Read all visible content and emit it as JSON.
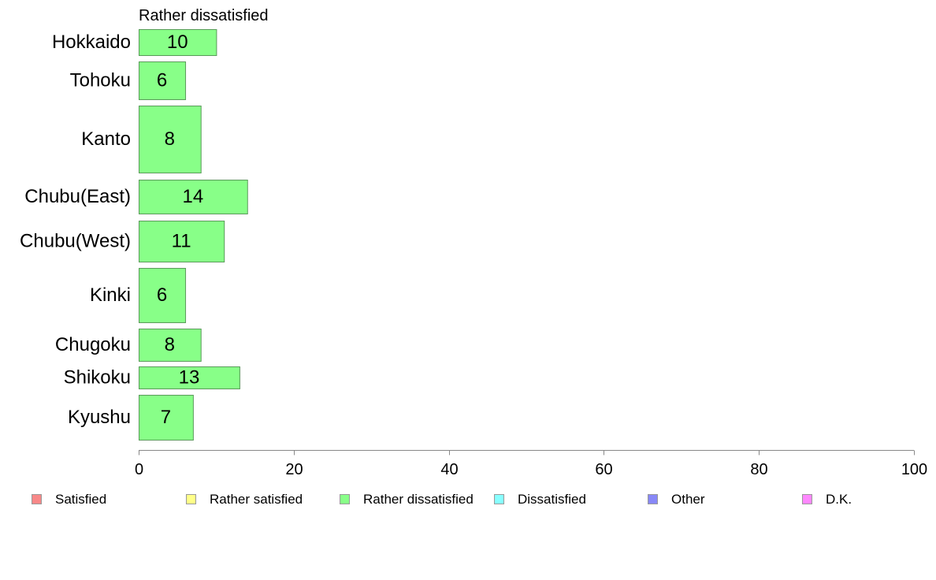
{
  "chart_data": {
    "type": "bar",
    "orientation": "horizontal",
    "title": "Rather dissatisfied",
    "categories": [
      "Hokkaido",
      "Tohoku",
      "Kanto",
      "Chubu(East)",
      "Chubu(West)",
      "Kinki",
      "Chugoku",
      "Shikoku",
      "Kyushu"
    ],
    "series": [
      {
        "name": "Rather dissatisfied",
        "values": [
          10,
          6,
          8,
          14,
          11,
          6,
          8,
          13,
          7
        ],
        "color": "#88ff88"
      }
    ],
    "data_labels": [
      "10",
      "6",
      "8",
      "14",
      "11",
      "6",
      "8",
      "13",
      "7"
    ],
    "xlim": [
      0,
      100
    ],
    "x_ticks": [
      "0",
      "20",
      "40",
      "60",
      "80",
      "100"
    ],
    "grid": false,
    "legend_position": "bottom",
    "legend": [
      {
        "label": "Satisfied",
        "color": "#f88888"
      },
      {
        "label": "Rather satisfied",
        "color": "#ffff88"
      },
      {
        "label": "Rather dissatisfied",
        "color": "#88ff88"
      },
      {
        "label": "Dissatisfied",
        "color": "#88ffff"
      },
      {
        "label": "Other",
        "color": "#8888f8"
      },
      {
        "label": "D.K.",
        "color": "#ff88ff"
      }
    ]
  }
}
